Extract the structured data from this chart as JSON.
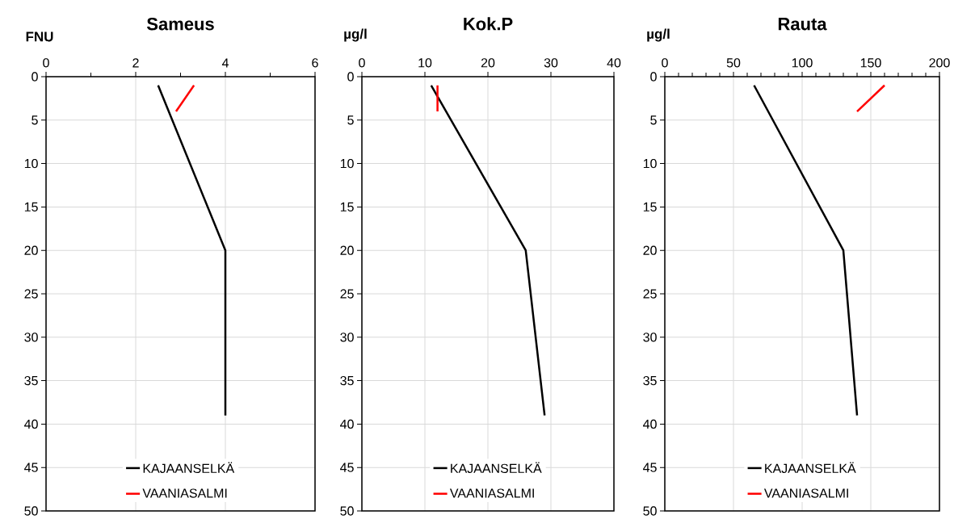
{
  "chart_data": [
    {
      "type": "line",
      "title": "Sameus",
      "ylabel": "FNU",
      "xlim": [
        0,
        6
      ],
      "xticks": [
        0,
        {
          "value": 1,
          "label": null
        },
        2,
        {
          "value": 3,
          "label": null
        },
        4,
        {
          "value": 5,
          "label": null
        },
        6
      ],
      "ylim": [
        50,
        0
      ],
      "yticks": [
        0,
        5,
        10,
        15,
        20,
        25,
        30,
        35,
        40,
        45,
        50
      ],
      "grid": true,
      "legend": "bottom",
      "series": [
        {
          "name": "KAJAANSELKÄ",
          "color": "#000000",
          "x": [
            2.5,
            4,
            4
          ],
          "values": [
            1,
            20,
            39
          ]
        },
        {
          "name": "VAANIASALMI",
          "color": "#ff0000",
          "x": [
            3.3,
            2.9
          ],
          "values": [
            1,
            4
          ]
        }
      ]
    },
    {
      "type": "line",
      "title": "Kok.P",
      "ylabel": "µg/l",
      "xlim": [
        0,
        40
      ],
      "xticks": [
        0,
        10,
        20,
        30,
        40
      ],
      "ylim": [
        50,
        0
      ],
      "yticks": [
        0,
        5,
        10,
        15,
        20,
        25,
        30,
        35,
        40,
        45,
        50
      ],
      "grid": true,
      "legend": "bottom",
      "series": [
        {
          "name": "KAJAANSELKÄ",
          "color": "#000000",
          "x": [
            11,
            26,
            29
          ],
          "values": [
            1,
            20,
            39
          ]
        },
        {
          "name": "VAANIASALMI",
          "color": "#ff0000",
          "x": [
            12,
            12
          ],
          "values": [
            1,
            4
          ]
        }
      ]
    },
    {
      "type": "line",
      "title": "Rauta",
      "ylabel": "µg/l",
      "xlim": [
        0,
        200
      ],
      "xticks": [
        0,
        {
          "value": 10,
          "label": null
        },
        {
          "value": 20,
          "label": null
        },
        {
          "value": 30,
          "label": null
        },
        {
          "value": 40,
          "label": null
        },
        50,
        {
          "value": 60,
          "label": null
        },
        {
          "value": 70,
          "label": null
        },
        {
          "value": 80,
          "label": null
        },
        {
          "value": 90,
          "label": null
        },
        100,
        {
          "value": 110,
          "label": null
        },
        {
          "value": 120,
          "label": null
        },
        {
          "value": 130,
          "label": null
        },
        {
          "value": 140,
          "label": null
        },
        150,
        {
          "value": 160,
          "label": null
        },
        {
          "value": 170,
          "label": null
        },
        {
          "value": 180,
          "label": null
        },
        {
          "value": 190,
          "label": null
        },
        200
      ],
      "ylim": [
        50,
        0
      ],
      "yticks": [
        0,
        5,
        10,
        15,
        20,
        25,
        30,
        35,
        40,
        45,
        50
      ],
      "grid": true,
      "legend": "bottom",
      "series": [
        {
          "name": "KAJAANSELKÄ",
          "color": "#000000",
          "x": [
            65,
            130,
            140
          ],
          "values": [
            1,
            20,
            39
          ]
        },
        {
          "name": "VAANIASALMI",
          "color": "#ff0000",
          "x": [
            160,
            140
          ],
          "values": [
            1,
            4
          ]
        }
      ]
    }
  ]
}
